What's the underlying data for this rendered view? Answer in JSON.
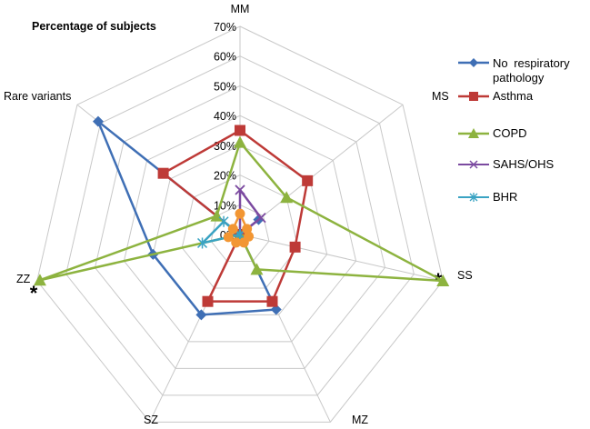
{
  "chart_data": {
    "type": "radar",
    "title": "Percentage of subjects",
    "axes": [
      "MM",
      "MS",
      "SS",
      "MZ",
      "SZ",
      "ZZ",
      "Rare variants"
    ],
    "axis_marks": {
      "SS": "*",
      "ZZ": "*"
    },
    "tick_labels": [
      "0%",
      "10%",
      "20%",
      "30%",
      "40%",
      "50%",
      "60%",
      "70%"
    ],
    "range": [
      0,
      70
    ],
    "series": [
      {
        "name": "No  respiratory pathology",
        "color": "#3f6fb5",
        "marker": "diamond",
        "values": [
          0,
          8,
          0,
          28,
          30,
          30,
          61
        ]
      },
      {
        "name": "Asthma",
        "color": "#be3a37",
        "marker": "square",
        "values": [
          35,
          29,
          19,
          25,
          25,
          0,
          33
        ]
      },
      {
        "name": "COPD",
        "color": "#8db33f",
        "marker": "triangle",
        "values": [
          31,
          20,
          70,
          13,
          0,
          69,
          10
        ]
      },
      {
        "name": "SAHS/OHS",
        "color": "#7b4aa0",
        "marker": "x",
        "values": [
          15,
          9,
          0,
          0,
          0,
          0,
          0
        ]
      },
      {
        "name": "BHR",
        "color": "#3aa3c3",
        "marker": "asterisk",
        "values": [
          0,
          0,
          0,
          0,
          0,
          13,
          7
        ]
      },
      {
        "name": "",
        "color": "#f29633",
        "marker": "circle",
        "values": [
          7,
          3,
          3,
          3,
          3,
          4,
          3
        ]
      }
    ]
  }
}
